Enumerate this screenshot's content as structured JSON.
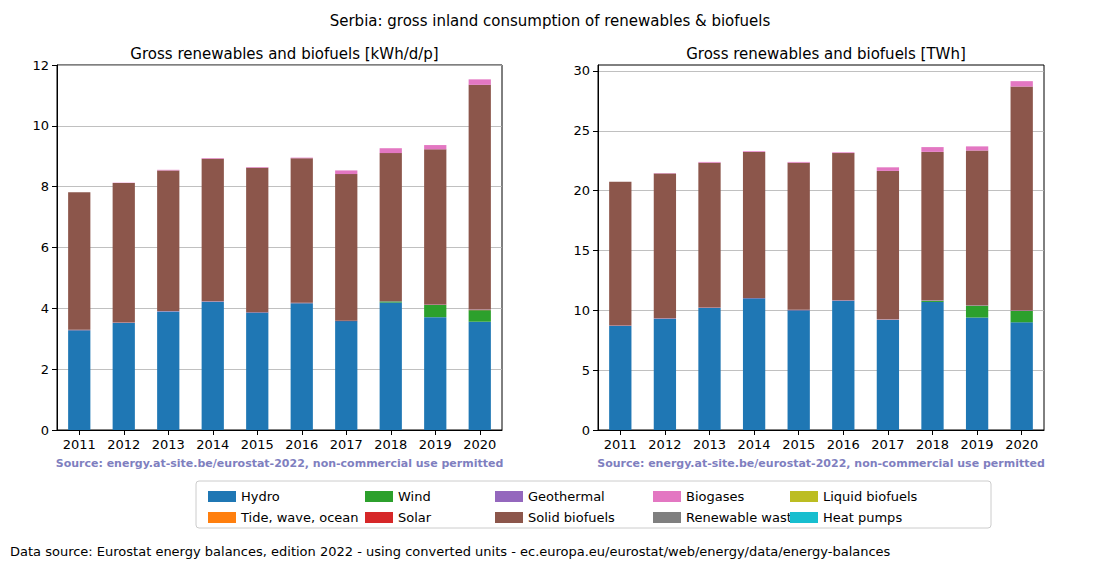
{
  "title": "Serbia: gross inland consumption of renewables & biofuels",
  "data_source": "Data source: Eurostat energy balances, edition 2022 - using converted units - ec.europa.eu/eurostat/web/energy/data/energy-balances",
  "legend": "bottom",
  "chart_data": [
    {
      "type": "bar",
      "stacked": true,
      "grid": true,
      "title": "Gross renewables and biofuels [kWh/d/p]",
      "source": "Source: energy.at-site.be/eurostat-2022, non-commercial use permitted",
      "categories": [
        "2011",
        "2012",
        "2013",
        "2014",
        "2015",
        "2016",
        "2017",
        "2018",
        "2019",
        "2020"
      ],
      "ylim": [
        0,
        12
      ],
      "yticks": [
        0,
        2,
        4,
        6,
        8,
        10,
        12
      ],
      "series": [
        {
          "name": "Hydro",
          "color": "#1f77b4",
          "values": [
            3.28,
            3.52,
            3.9,
            4.22,
            3.86,
            4.17,
            3.58,
            4.19,
            3.71,
            3.56
          ]
        },
        {
          "name": "Tide, wave, ocean",
          "color": "#ff7f0e",
          "values": [
            0,
            0,
            0,
            0,
            0,
            0,
            0,
            0,
            0,
            0
          ]
        },
        {
          "name": "Wind",
          "color": "#2ca02c",
          "values": [
            0,
            0,
            0,
            0,
            0,
            0,
            0,
            0.04,
            0.4,
            0.38
          ]
        },
        {
          "name": "Solar",
          "color": "#d62728",
          "values": [
            0.004,
            0.004,
            0.004,
            0.004,
            0.004,
            0.004,
            0.004,
            0.004,
            0.008,
            0.008
          ]
        },
        {
          "name": "Geothermal",
          "color": "#9467bd",
          "values": [
            0.01,
            0.01,
            0.01,
            0.01,
            0.01,
            0.01,
            0.01,
            0.01,
            0.01,
            0.01
          ]
        },
        {
          "name": "Solid biofuels",
          "color": "#8c564b",
          "values": [
            4.52,
            4.59,
            4.62,
            4.68,
            4.75,
            4.75,
            4.82,
            4.86,
            5.1,
            7.39
          ]
        },
        {
          "name": "Biogases",
          "color": "#e377c2",
          "values": [
            0,
            0.01,
            0.02,
            0.02,
            0.02,
            0.02,
            0.12,
            0.16,
            0.14,
            0.18
          ]
        },
        {
          "name": "Renewable waste",
          "color": "#7f7f7f",
          "values": [
            0,
            0,
            0,
            0,
            0,
            0,
            0,
            0,
            0,
            0
          ]
        },
        {
          "name": "Liquid biofuels",
          "color": "#bcbd22",
          "values": [
            0,
            0,
            0,
            0,
            0,
            0,
            0,
            0,
            0,
            0
          ]
        },
        {
          "name": "Heat pumps",
          "color": "#17becf",
          "values": [
            0,
            0,
            0,
            0,
            0,
            0,
            0,
            0,
            0,
            0
          ]
        }
      ]
    },
    {
      "type": "bar",
      "stacked": true,
      "grid": true,
      "title": "Gross renewables and biofuels [TWh]",
      "source": "Source: energy.at-site.be/eurostat-2022, non-commercial use permitted",
      "categories": [
        "2011",
        "2012",
        "2013",
        "2014",
        "2015",
        "2016",
        "2017",
        "2018",
        "2019",
        "2020"
      ],
      "ylim": [
        0,
        30.5
      ],
      "yticks": [
        0,
        5,
        10,
        15,
        20,
        25,
        30
      ],
      "series": [
        {
          "name": "Hydro",
          "color": "#1f77b4",
          "values": [
            8.7,
            9.3,
            10.2,
            11.0,
            10.0,
            10.8,
            9.2,
            10.7,
            9.4,
            9.0
          ]
        },
        {
          "name": "Tide, wave, ocean",
          "color": "#ff7f0e",
          "values": [
            0,
            0,
            0,
            0,
            0,
            0,
            0,
            0,
            0,
            0
          ]
        },
        {
          "name": "Wind",
          "color": "#2ca02c",
          "values": [
            0,
            0,
            0,
            0,
            0,
            0,
            0.01,
            0.1,
            1.0,
            0.95
          ]
        },
        {
          "name": "Solar",
          "color": "#d62728",
          "values": [
            0.01,
            0.01,
            0.01,
            0.01,
            0.01,
            0.01,
            0.01,
            0.01,
            0.02,
            0.02
          ]
        },
        {
          "name": "Geothermal",
          "color": "#9467bd",
          "values": [
            0.03,
            0.03,
            0.03,
            0.03,
            0.03,
            0.03,
            0.03,
            0.03,
            0.03,
            0.03
          ]
        },
        {
          "name": "Solid biofuels",
          "color": "#8c564b",
          "values": [
            12.0,
            12.1,
            12.1,
            12.2,
            12.3,
            12.3,
            12.4,
            12.4,
            12.9,
            18.7
          ]
        },
        {
          "name": "Biogases",
          "color": "#e377c2",
          "values": [
            0,
            0.03,
            0.06,
            0.06,
            0.06,
            0.06,
            0.3,
            0.4,
            0.35,
            0.45
          ]
        },
        {
          "name": "Renewable waste",
          "color": "#7f7f7f",
          "values": [
            0,
            0,
            0,
            0,
            0,
            0,
            0,
            0,
            0,
            0
          ]
        },
        {
          "name": "Liquid biofuels",
          "color": "#bcbd22",
          "values": [
            0,
            0,
            0,
            0,
            0,
            0,
            0,
            0,
            0,
            0
          ]
        },
        {
          "name": "Heat pumps",
          "color": "#17becf",
          "values": [
            0,
            0,
            0,
            0,
            0,
            0,
            0,
            0,
            0,
            0
          ]
        }
      ]
    }
  ]
}
